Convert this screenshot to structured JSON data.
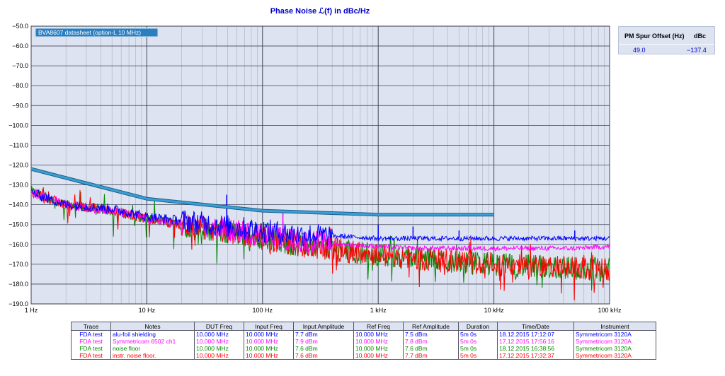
{
  "chart_data": {
    "type": "line",
    "title": "Phase Noise ℒ(f) in dBc/Hz",
    "x_scale": "log",
    "xlim": [
      1,
      100000
    ],
    "ylim": [
      -190,
      -50
    ],
    "x_ticks": [
      {
        "value": 1,
        "label": "1 Hz"
      },
      {
        "value": 10,
        "label": "10 Hz"
      },
      {
        "value": 100,
        "label": "100 Hz"
      },
      {
        "value": 1000,
        "label": "1 kHz"
      },
      {
        "value": 10000,
        "label": "10 kHz"
      },
      {
        "value": 100000,
        "label": "100 kHz"
      }
    ],
    "y_ticks": [
      -50,
      -60,
      -70,
      -80,
      -90,
      -100,
      -110,
      -120,
      -130,
      -140,
      -150,
      -160,
      -170,
      -180,
      -190
    ],
    "y_tick_labels": [
      "−50.0",
      "−60.0",
      "−70.0",
      "−80.0",
      "−90.0",
      "−100.0",
      "−110.0",
      "−120.0",
      "−130.0",
      "−140.0",
      "−150.0",
      "−160.0",
      "−170.0",
      "−180.0",
      "−190.0"
    ],
    "grid": true,
    "reference_trace": {
      "name": "BVA8607 datasheet (option-L 10 MHz)",
      "color": "#3a9fd6",
      "x": [
        1,
        10,
        100,
        1000,
        10000
      ],
      "y": [
        -122,
        -137,
        -143,
        -145,
        -145
      ]
    },
    "series": [
      {
        "color": "#0000ff",
        "x": [
          1,
          2,
          5,
          10,
          20,
          50,
          100,
          200,
          500,
          1000,
          2000,
          5000,
          10000,
          20000,
          50000,
          100000
        ],
        "y": [
          -134,
          -140,
          -142,
          -146,
          -148,
          -151,
          -153,
          -155,
          -156,
          -157,
          -157,
          -157,
          -157,
          -157,
          -157,
          -157
        ],
        "spurs": [
          {
            "x": 49,
            "y": -135
          },
          {
            "x": 150,
            "y": -152
          },
          {
            "x": 1000,
            "y": -150
          },
          {
            "x": 2000,
            "y": -151
          },
          {
            "x": 5000,
            "y": -153
          },
          {
            "x": 50000,
            "y": -153
          }
        ]
      },
      {
        "color": "#ff00ff",
        "x": [
          1,
          2,
          5,
          10,
          20,
          50,
          100,
          200,
          500,
          1000,
          2000,
          5000,
          10000,
          20000,
          50000,
          100000
        ],
        "y": [
          -134,
          -140,
          -143,
          -147,
          -150,
          -153,
          -155,
          -158,
          -160,
          -161,
          -162,
          -162,
          -162,
          -162,
          -162,
          -161
        ],
        "spurs": [
          {
            "x": 150,
            "y": -144
          }
        ]
      },
      {
        "color": "#008800",
        "x": [
          1,
          2,
          5,
          10,
          20,
          50,
          100,
          200,
          500,
          1000,
          2000,
          5000,
          10000,
          20000,
          50000,
          100000
        ],
        "y": [
          -133,
          -140,
          -143,
          -147,
          -150,
          -154,
          -157,
          -160,
          -163,
          -165,
          -167,
          -169,
          -170,
          -171,
          -172,
          -173
        ],
        "spurs": []
      },
      {
        "color": "#ff0000",
        "x": [
          1,
          2,
          5,
          10,
          20,
          50,
          100,
          200,
          500,
          1000,
          2000,
          5000,
          10000,
          20000,
          50000,
          100000
        ],
        "y": [
          -134,
          -140,
          -143,
          -147,
          -150,
          -154,
          -157,
          -160,
          -163,
          -165,
          -167,
          -169,
          -170,
          -171,
          -172,
          -173
        ],
        "spurs": []
      }
    ]
  },
  "spur_table": {
    "col_offset": "PM Spur Offset (Hz)",
    "col_dbc": "dBc",
    "offset_value": "49.0",
    "dbc_value": "−137.4"
  },
  "trace_table": {
    "headers": [
      "Trace",
      "Notes",
      "DUT Freq",
      "Input Freq",
      "Input Amplitude",
      "Ref Freq",
      "Ref Amplitude",
      "Duration",
      "Time/Date",
      "Instrument"
    ],
    "rows": [
      {
        "color": "#0000ff",
        "cells": [
          "FDA test",
          "alu-foil shielding",
          "10.000 MHz",
          "10.000 MHz",
          "7.7 dBm",
          "10.000 MHz",
          "7.5 dBm",
          "5m 0s",
          "18.12.2015 17:12:07",
          "Symmetricom 3120A"
        ]
      },
      {
        "color": "#ff00ff",
        "cells": [
          "FDA test",
          "Symmetricom 6502 ch1",
          "10.000 MHz",
          "10.000 MHz",
          "7.9 dBm",
          "10.000 MHz",
          "7.8 dBm",
          "5m 0s",
          "17.12.2015 17:56:16",
          "Symmetricom 3120A"
        ]
      },
      {
        "color": "#008800",
        "cells": [
          "FDA test",
          "noise floor",
          "10.000 MHz",
          "10.000 MHz",
          "7.6 dBm",
          "10.000 MHz",
          "7.6 dBm",
          "5m 0s",
          "18.12.2015 16:38:56",
          "Symmetricom 3120A"
        ]
      },
      {
        "color": "#ff0000",
        "cells": [
          "FDA test",
          "instr. noise floor.",
          "10.000 MHz",
          "10.000 MHz",
          "7.6 dBm",
          "10.000 MHz",
          "7.7 dBm",
          "5m 0s",
          "17.12.2015 17:32:37",
          "Symmetricom 3120A"
        ]
      }
    ]
  }
}
